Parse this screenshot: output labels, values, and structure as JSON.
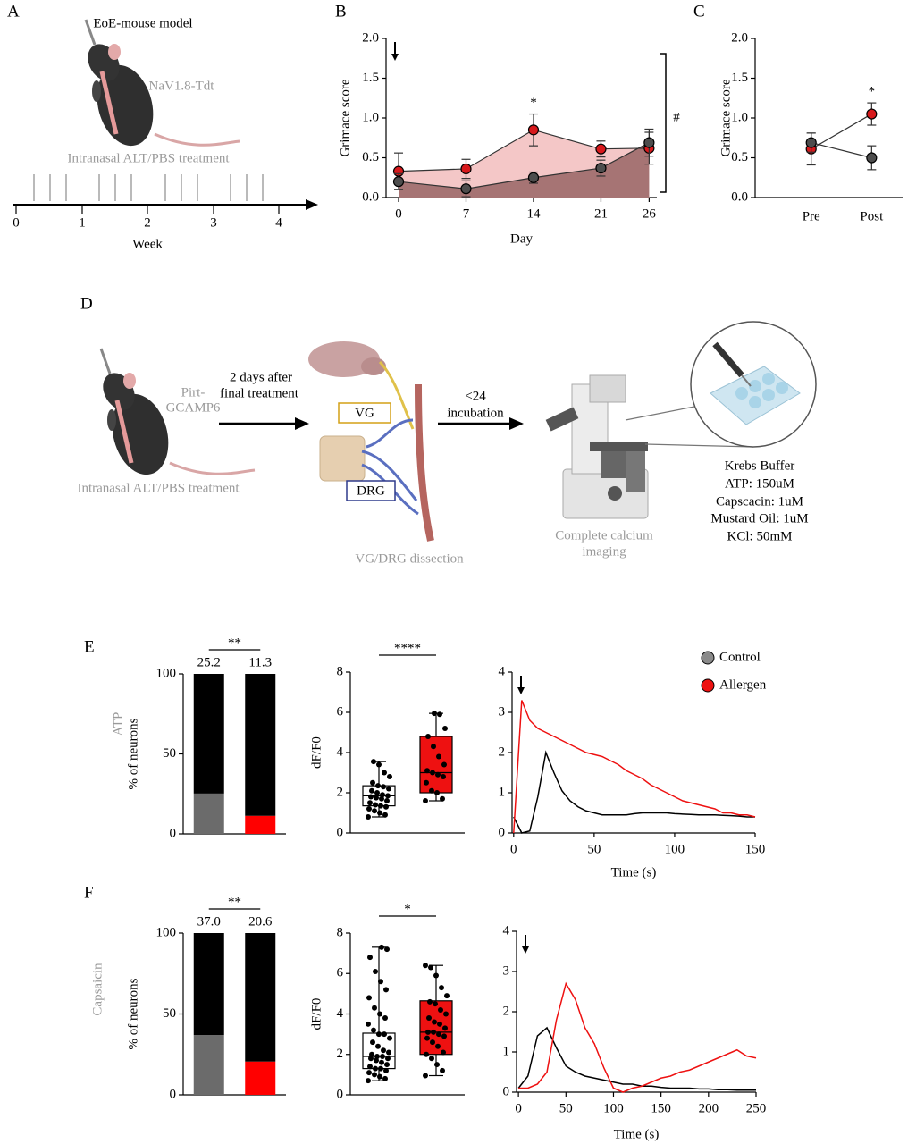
{
  "panel_labels": [
    "A",
    "B",
    "C",
    "D",
    "E",
    "F"
  ],
  "panel_a": {
    "title": "EoE-mouse model",
    "strain": "NaV1.8-Tdt",
    "treatment": "Intranasal ALT/PBS treatment",
    "week_labels": [
      "0",
      "1",
      "2",
      "3",
      "4"
    ],
    "axis_label": "Week"
  },
  "panel_d": {
    "mouse_line": [
      "Pirt-",
      "GCAMP6"
    ],
    "treatment": "Intranasal ALT/PBS treatment",
    "step1": [
      "2 days after",
      "final treatment"
    ],
    "vg": "VG",
    "drg": "DRG",
    "dissection": "VG/DRG dissection",
    "step2": [
      "<24",
      "incubation"
    ],
    "imaging": [
      "Complete calcium",
      "imaging"
    ],
    "buffer": [
      "Krebs Buffer",
      "ATP: 150uM",
      "Capscacin: 1uM",
      "Mustard Oil: 1uM",
      "KCl: 50mM"
    ]
  },
  "row_labels": [
    "ATP",
    "Capsaicin"
  ],
  "chart_data": [
    {
      "type": "line",
      "xlabel": "Day",
      "ylabel": "Grimace score",
      "x": [
        0,
        7,
        14,
        21,
        26
      ],
      "xlim": [
        -1.3,
        26.8
      ],
      "xticks": [
        0,
        7,
        14,
        21,
        26
      ],
      "ylim": [
        0,
        2
      ],
      "yticks": [
        {
          "value": 0,
          "label": "0.0"
        },
        {
          "value": 0.5,
          "label": "0.5"
        },
        {
          "value": 1,
          "label": "1.0"
        },
        {
          "value": 1.5,
          "label": "1.5"
        },
        {
          "value": 2,
          "label": "2.0"
        }
      ],
      "markers": true,
      "line_color": "#333333",
      "annotations": [
        "*",
        "#"
      ],
      "series": [
        {
          "color": "#d7191c",
          "area_color": "#f4c7c7",
          "values": [
            0.33,
            0.36,
            0.85,
            0.61,
            0.62
          ],
          "errors": [
            0.23,
            0.12,
            0.2,
            0.1,
            0.2
          ]
        },
        {
          "color": "#4d4d4d",
          "area_color": "#a67474",
          "values": [
            0.2,
            0.11,
            0.25,
            0.37,
            0.69
          ],
          "errors": [
            0.1,
            0.1,
            0.07,
            0.1,
            0.17
          ]
        }
      ]
    },
    {
      "type": "line",
      "ylabel": "Grimace score",
      "categories": [
        "Pre",
        "Post"
      ],
      "ylim": [
        0,
        2
      ],
      "yticks": [
        {
          "value": 0,
          "label": "0.0"
        },
        {
          "value": 0.5,
          "label": "0.5"
        },
        {
          "value": 1,
          "label": "1.0"
        },
        {
          "value": 1.5,
          "label": "1.5"
        },
        {
          "value": 2,
          "label": "2.0"
        }
      ],
      "markers": true,
      "line_color": "#333333",
      "annotations": [
        "*"
      ],
      "series": [
        {
          "color": "#d7191c",
          "values": [
            0.61,
            1.05
          ],
          "errors": [
            0.2,
            0.14
          ]
        },
        {
          "color": "#4d4d4d",
          "values": [
            0.69,
            0.5
          ],
          "errors": [
            0.12,
            0.15
          ]
        }
      ]
    },
    {
      "type": "bar",
      "ylabel": "% of neurons",
      "ylim": [
        0,
        100
      ],
      "yticks": [
        0,
        50,
        100
      ],
      "significance": "**",
      "series": [
        {
          "colors": [
            "#6b6b6b",
            "#ff0000"
          ],
          "values": [
            25.2,
            11.3
          ]
        },
        {
          "color": "#000000",
          "values": [
            74.8,
            88.7
          ]
        }
      ]
    },
    {
      "type": "box",
      "ylabel": "dF/F0",
      "ylim": [
        0,
        8
      ],
      "yticks": [
        0,
        2,
        4,
        6,
        8
      ],
      "significance": "****",
      "series": [
        {
          "color": "#ffffff",
          "box": [
            0.8,
            1.35,
            1.85,
            2.35,
            3.55
          ],
          "points": [
            0.8,
            0.9,
            1.0,
            1.1,
            1.2,
            1.3,
            1.35,
            1.4,
            1.5,
            1.6,
            1.7,
            1.75,
            1.8,
            1.85,
            1.9,
            2.0,
            2.1,
            2.2,
            2.3,
            2.35,
            2.5,
            2.8,
            3.0,
            3.4,
            3.55
          ]
        },
        {
          "color": "#ee1111",
          "box": [
            1.6,
            2.0,
            3.0,
            4.8,
            5.95
          ],
          "points": [
            1.6,
            1.7,
            2.0,
            2.1,
            2.5,
            2.8,
            2.9,
            3.0,
            3.1,
            3.4,
            3.8,
            4.3,
            4.8,
            5.2,
            5.9,
            5.95
          ]
        }
      ]
    },
    {
      "type": "line",
      "xlabel": "Time (s)",
      "x": [
        0,
        5,
        10,
        15,
        20,
        25,
        30,
        35,
        40,
        45,
        50,
        55,
        60,
        65,
        70,
        75,
        80,
        85,
        90,
        95,
        100,
        105,
        110,
        115,
        120,
        125,
        130,
        135,
        140,
        145,
        150
      ],
      "xlim": [
        -1,
        150
      ],
      "xticks": [
        0,
        50,
        100,
        150
      ],
      "ylim": [
        0,
        4
      ],
      "yticks": [
        0,
        1,
        2,
        3,
        4
      ],
      "legend": [
        {
          "name": "Control",
          "color": "#8a8a8a"
        },
        {
          "name": "Allergen",
          "color": "#ee1111"
        }
      ],
      "series": [
        {
          "color": "#000000",
          "values": [
            0.4,
            0,
            0.05,
            0.9,
            2.0,
            1.5,
            1.05,
            0.8,
            0.65,
            0.55,
            0.5,
            0.45,
            0.45,
            0.45,
            0.45,
            0.48,
            0.5,
            0.5,
            0.5,
            0.5,
            0.48,
            0.47,
            0.46,
            0.45,
            0.45,
            0.45,
            0.44,
            0.43,
            0.42,
            0.4,
            0.4
          ]
        },
        {
          "color": "#ee1111",
          "values": [
            0,
            3.3,
            2.8,
            2.6,
            2.5,
            2.4,
            2.3,
            2.2,
            2.1,
            2.0,
            1.95,
            1.9,
            1.8,
            1.7,
            1.55,
            1.45,
            1.35,
            1.2,
            1.1,
            1.0,
            0.9,
            0.8,
            0.75,
            0.7,
            0.65,
            0.6,
            0.5,
            0.5,
            0.45,
            0.45,
            0.4
          ]
        }
      ]
    },
    {
      "type": "bar",
      "ylabel": "% of neurons",
      "ylim": [
        0,
        100
      ],
      "yticks": [
        0,
        50,
        100
      ],
      "significance": "**",
      "series": [
        {
          "colors": [
            "#6b6b6b",
            "#ff0000"
          ],
          "values": [
            37,
            20.6
          ],
          "value_labels": [
            "37.0",
            "20.6"
          ]
        },
        {
          "color": "#000000",
          "values": [
            63,
            79.4
          ]
        }
      ]
    },
    {
      "type": "box",
      "ylabel": "dF/F0",
      "ylim": [
        0,
        8
      ],
      "yticks": [
        0,
        2,
        4,
        6,
        8
      ],
      "significance": "*",
      "series": [
        {
          "color": "#ffffff",
          "box": [
            0.7,
            1.3,
            1.9,
            3.05,
            7.3
          ],
          "points": [
            0.7,
            0.8,
            0.9,
            1.0,
            1.1,
            1.2,
            1.3,
            1.3,
            1.4,
            1.5,
            1.6,
            1.7,
            1.8,
            1.8,
            1.9,
            1.9,
            2.0,
            2.1,
            2.2,
            2.4,
            2.6,
            2.8,
            3.0,
            3.0,
            3.2,
            3.5,
            3.8,
            4.0,
            4.3,
            4.8,
            5.2,
            5.6,
            6.1,
            6.8,
            7.2,
            7.3
          ]
        },
        {
          "color": "#ee1111",
          "box": [
            0.95,
            2.0,
            3.1,
            4.65,
            6.4
          ],
          "points": [
            0.95,
            1.2,
            1.5,
            1.8,
            2.0,
            2.1,
            2.4,
            2.6,
            2.8,
            2.9,
            3.0,
            3.1,
            3.1,
            3.3,
            3.5,
            3.6,
            3.8,
            4.0,
            4.2,
            4.5,
            4.6,
            4.9,
            5.3,
            5.9,
            6.3,
            6.4
          ]
        }
      ]
    },
    {
      "type": "line",
      "xlabel": "Time (s)",
      "x": [
        0,
        10,
        20,
        30,
        40,
        50,
        60,
        70,
        80,
        90,
        100,
        110,
        120,
        130,
        140,
        150,
        160,
        170,
        180,
        190,
        200,
        210,
        220,
        230,
        240,
        250
      ],
      "xlim": [
        -2,
        250
      ],
      "xticks": [
        0,
        50,
        100,
        150,
        200,
        250
      ],
      "ylim": [
        0,
        4
      ],
      "yticks": [
        0,
        1,
        2,
        3,
        4
      ],
      "series": [
        {
          "color": "#000000",
          "values": [
            0.1,
            0.4,
            1.4,
            1.6,
            1.1,
            0.65,
            0.5,
            0.4,
            0.35,
            0.3,
            0.25,
            0.2,
            0.2,
            0.15,
            0.15,
            0.12,
            0.1,
            0.1,
            0.1,
            0.08,
            0.08,
            0.06,
            0.06,
            0.05,
            0.05,
            0.05
          ]
        },
        {
          "color": "#ee1111",
          "values": [
            0.1,
            0.1,
            0.2,
            0.5,
            1.8,
            2.7,
            2.3,
            1.6,
            1.2,
            0.6,
            0.1,
            0,
            0.1,
            0.15,
            0.25,
            0.35,
            0.4,
            0.5,
            0.55,
            0.65,
            0.75,
            0.85,
            0.95,
            1.05,
            0.9,
            0.85
          ]
        }
      ]
    }
  ]
}
